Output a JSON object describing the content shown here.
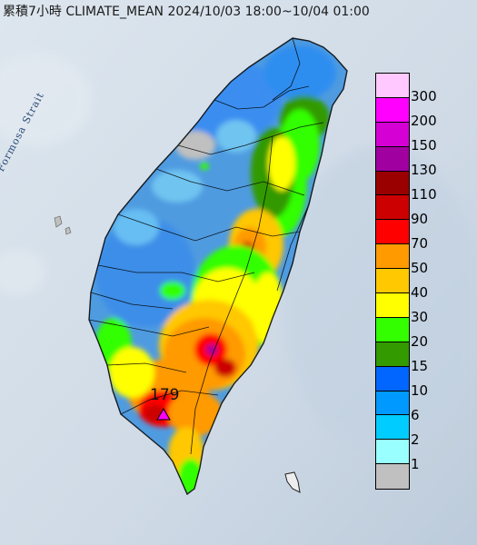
{
  "title": "累積7小時 CLIMATE_MEAN 2024/10/03 18:00~10/04 01:00",
  "strait_label": "Formosa Strait",
  "max_value": "179",
  "legend": {
    "levels": [
      "300",
      "200",
      "150",
      "130",
      "110",
      "90",
      "70",
      "50",
      "40",
      "30",
      "20",
      "15",
      "10",
      "6",
      "2",
      "1"
    ],
    "colors": [
      "#ffc8ff",
      "#ff00ff",
      "#d400d4",
      "#a000a0",
      "#9a0000",
      "#cc0000",
      "#ff0000",
      "#ff9a00",
      "#ffc800",
      "#ffff00",
      "#33ff00",
      "#339a00",
      "#0066ff",
      "#0099ff",
      "#00ccff",
      "#99ffff",
      "#c0c0c0"
    ]
  },
  "colors": {
    "sea": "#d4dfe8",
    "land_low": "#5aa0e0",
    "grey": "#c0c0c0"
  },
  "icons": {
    "max_marker": "triangle-marker-icon"
  }
}
